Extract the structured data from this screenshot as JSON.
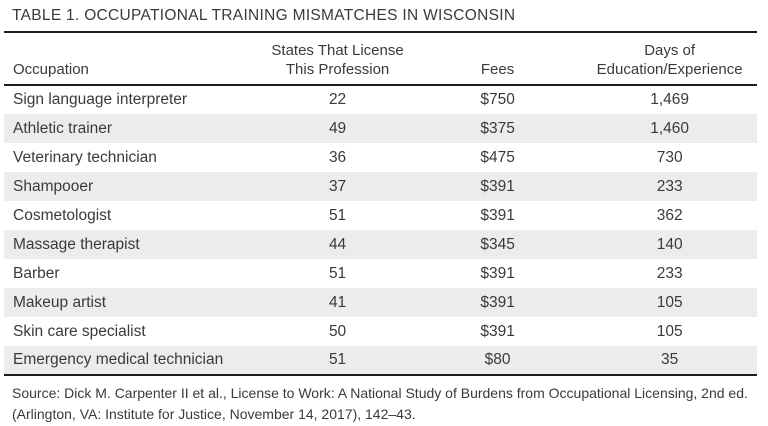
{
  "title": "TABLE 1. OCCUPATIONAL TRAINING MISMATCHES IN WISCONSIN",
  "table": {
    "header": {
      "occupation": "Occupation",
      "states_line1": "States That License",
      "states_line2": "This Profession",
      "fees": "Fees",
      "days_line1": "Days of",
      "days_line2": "Education/Experience"
    },
    "rows": [
      {
        "occupation": "Sign language interpreter",
        "states": "22",
        "fees": "$750",
        "days": "1,469"
      },
      {
        "occupation": "Athletic trainer",
        "states": "49",
        "fees": "$375",
        "days": "1,460"
      },
      {
        "occupation": "Veterinary technician",
        "states": "36",
        "fees": "$475",
        "days": "730"
      },
      {
        "occupation": "Shampooer",
        "states": "37",
        "fees": "$391",
        "days": "233"
      },
      {
        "occupation": "Cosmetologist",
        "states": "51",
        "fees": "$391",
        "days": "362"
      },
      {
        "occupation": "Massage therapist",
        "states": "44",
        "fees": "$345",
        "days": "140"
      },
      {
        "occupation": "Barber",
        "states": "51",
        "fees": "$391",
        "days": "233"
      },
      {
        "occupation": "Makeup artist",
        "states": "41",
        "fees": "$391",
        "days": "105"
      },
      {
        "occupation": "Skin care specialist",
        "states": "50",
        "fees": "$391",
        "days": "105"
      },
      {
        "occupation": "Emergency medical technician",
        "states": "51",
        "fees": "$80",
        "days": "35"
      }
    ]
  },
  "source": {
    "line1": "Source: Dick M. Carpenter II et al., License to Work: A National Study of Burdens from Occupational Licensing, 2nd ed.",
    "line2": "(Arlington, VA: Institute for Justice, November 14, 2017), 142–43."
  },
  "colors": {
    "background": "#ffffff",
    "text": "#3a3a3a",
    "stripe": "#ececec",
    "rule": "#1d1d1d"
  },
  "chart_data": {
    "type": "table",
    "title": "TABLE 1. OCCUPATIONAL TRAINING MISMATCHES IN WISCONSIN",
    "columns": [
      "Occupation",
      "States That License This Profession",
      "Fees",
      "Days of Education/Experience"
    ],
    "rows": [
      [
        "Sign language interpreter",
        22,
        750,
        1469
      ],
      [
        "Athletic trainer",
        49,
        375,
        1460
      ],
      [
        "Veterinary technician",
        36,
        475,
        730
      ],
      [
        "Shampooer",
        37,
        391,
        233
      ],
      [
        "Cosmetologist",
        51,
        391,
        362
      ],
      [
        "Massage therapist",
        44,
        345,
        140
      ],
      [
        "Barber",
        51,
        391,
        233
      ],
      [
        "Makeup artist",
        41,
        391,
        105
      ],
      [
        "Skin care specialist",
        50,
        391,
        105
      ],
      [
        "Emergency medical technician",
        51,
        80,
        35
      ]
    ]
  }
}
